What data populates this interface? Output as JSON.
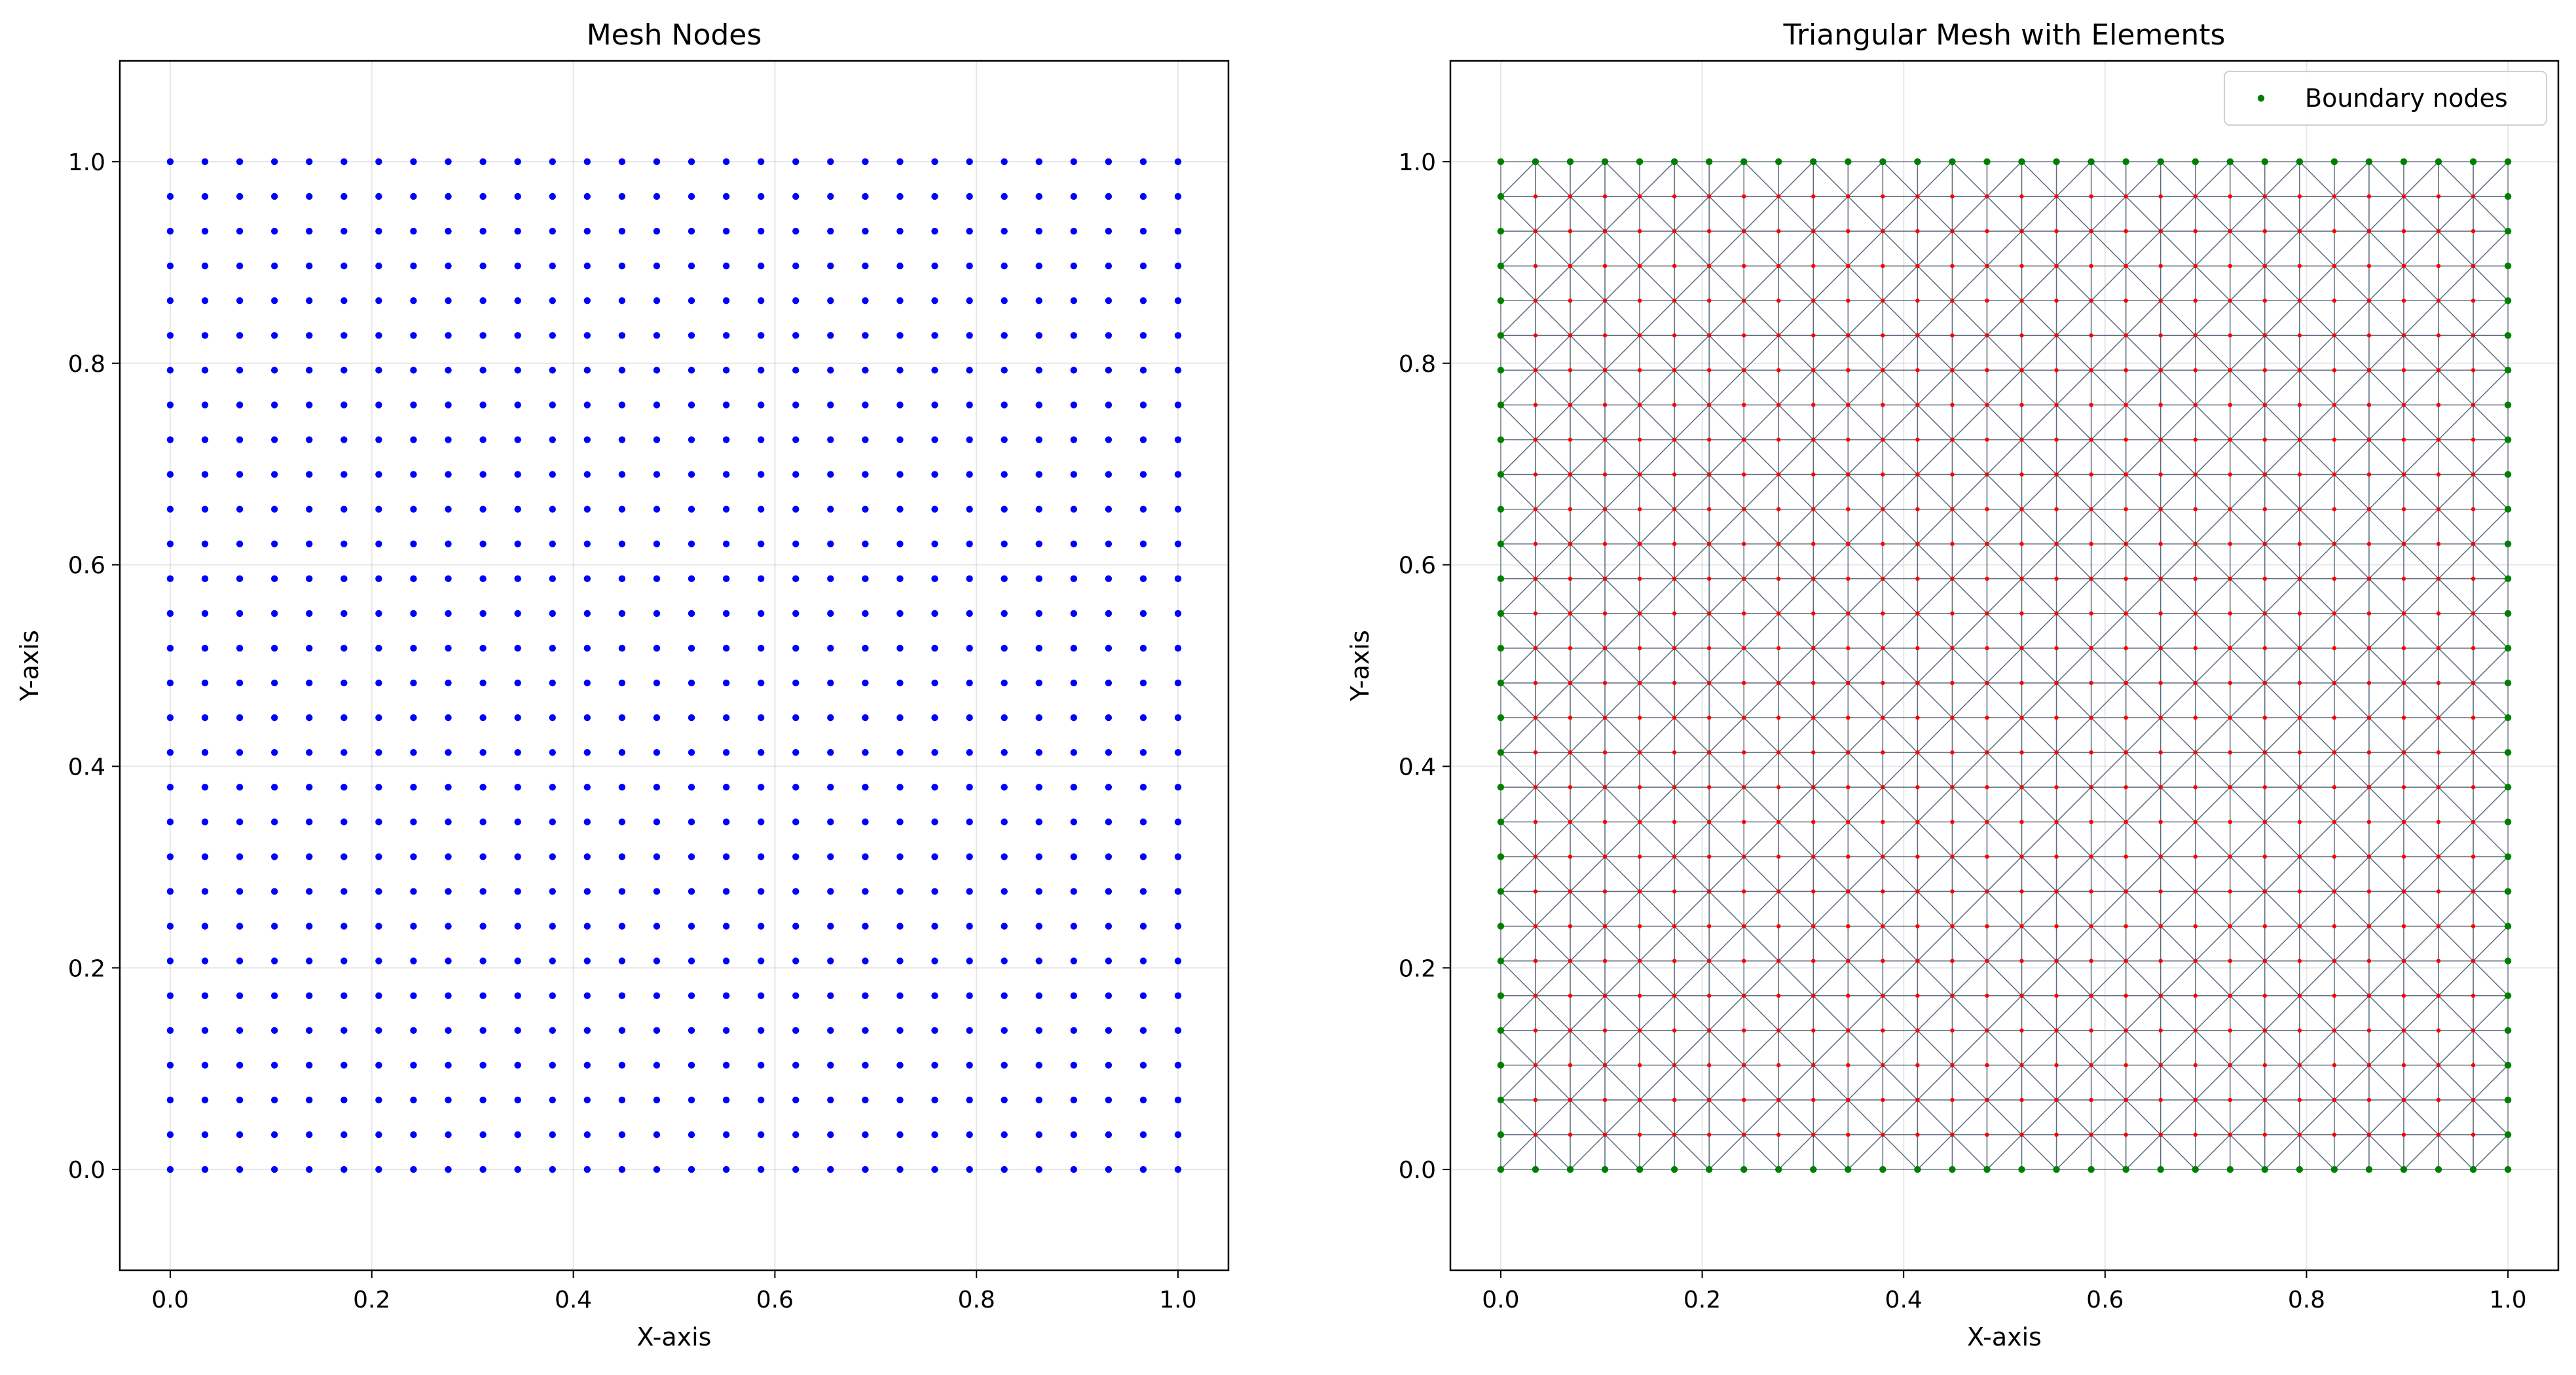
{
  "chart_data": [
    {
      "type": "scatter",
      "title": "Mesh Nodes",
      "xlabel": "X-axis",
      "ylabel": "Y-axis",
      "xlim": [
        -0.05,
        1.05
      ],
      "ylim": [
        -0.1,
        1.1
      ],
      "xticks": [
        "0.0",
        "0.2",
        "0.4",
        "0.6",
        "0.8",
        "1.0"
      ],
      "yticks": [
        "0.0",
        "0.2",
        "0.4",
        "0.6",
        "0.8",
        "1.0"
      ],
      "grid": true,
      "nodes": {
        "x_min": 0,
        "x_max": 1,
        "y_min": 0,
        "y_max": 1,
        "nx": 30,
        "ny": 30
      },
      "series": [
        {
          "color": "#0000ff",
          "marker": "dot"
        }
      ]
    },
    {
      "type": "scatter",
      "title": "Triangular Mesh with Elements",
      "xlabel": "X-axis",
      "ylabel": "Y-axis",
      "xlim": [
        -0.05,
        1.05
      ],
      "ylim": [
        -0.1,
        1.1
      ],
      "xticks": [
        "0.0",
        "0.2",
        "0.4",
        "0.6",
        "0.8",
        "1.0"
      ],
      "yticks": [
        "0.0",
        "0.2",
        "0.4",
        "0.6",
        "0.8",
        "1.0"
      ],
      "grid": true,
      "legend_position": "top-right",
      "nodes": {
        "x_min": 0,
        "x_max": 1,
        "y_min": 0,
        "y_max": 1,
        "nx": 30,
        "ny": 30
      },
      "elements": {
        "shape": "triangle",
        "pattern": "alternating diagonals",
        "edge_color": "#5a6b7b"
      },
      "series": [
        {
          "color": "#ff0000",
          "marker": "dot",
          "subset": "interior"
        },
        {
          "name": "Boundary nodes",
          "color": "#008000",
          "marker": "dot",
          "subset": "boundary"
        }
      ]
    }
  ]
}
